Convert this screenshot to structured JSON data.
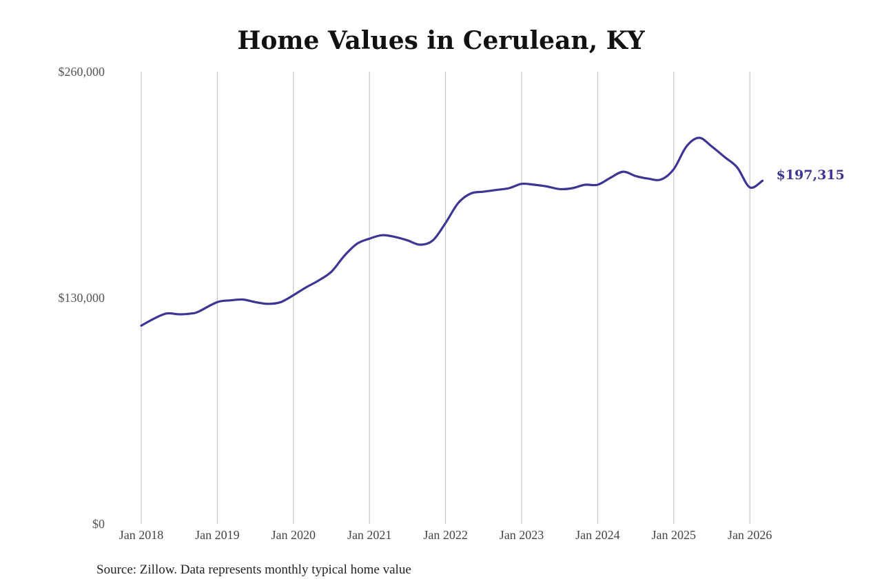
{
  "chart_data": {
    "type": "line",
    "title": "Home Values in Cerulean, KY",
    "source": "Source: Zillow. Data represents monthly typical home value",
    "ylim": [
      0,
      260000
    ],
    "yticks": [
      {
        "value": 0,
        "label": "$0"
      },
      {
        "value": 130000,
        "label": "$130,000"
      },
      {
        "value": 260000,
        "label": "$260,000"
      }
    ],
    "xlim": [
      "2018-01",
      "2026-03"
    ],
    "xticks": [
      {
        "date": "2018-01",
        "label": "Jan 2018"
      },
      {
        "date": "2019-01",
        "label": "Jan 2019"
      },
      {
        "date": "2020-01",
        "label": "Jan 2020"
      },
      {
        "date": "2021-01",
        "label": "Jan 2021"
      },
      {
        "date": "2022-01",
        "label": "Jan 2022"
      },
      {
        "date": "2023-01",
        "label": "Jan 2023"
      },
      {
        "date": "2024-01",
        "label": "Jan 2024"
      },
      {
        "date": "2025-01",
        "label": "Jan 2025"
      },
      {
        "date": "2026-01",
        "label": "Jan 2026"
      }
    ],
    "grid": {
      "vertical": true,
      "horizontal": false
    },
    "line_color": "#3b3593",
    "end_label": "$197,315",
    "series": [
      {
        "x": [
          "2018-01",
          "2018-03",
          "2018-05",
          "2018-07",
          "2018-09",
          "2018-10",
          "2019-01",
          "2019-03",
          "2019-05",
          "2019-07",
          "2019-09",
          "2019-11",
          "2020-01",
          "2020-03",
          "2020-05",
          "2020-07",
          "2020-09",
          "2020-11",
          "2021-01",
          "2021-03",
          "2021-05",
          "2021-07",
          "2021-09",
          "2021-11",
          "2022-01",
          "2022-03",
          "2022-05",
          "2022-07",
          "2022-09",
          "2022-11",
          "2023-01",
          "2023-03",
          "2023-05",
          "2023-07",
          "2023-09",
          "2023-11",
          "2024-01",
          "2024-03",
          "2024-05",
          "2024-07",
          "2024-09",
          "2024-11",
          "2025-01",
          "2025-03",
          "2025-05",
          "2025-07",
          "2025-09",
          "2025-11",
          "2026-01",
          "2026-03"
        ],
        "values": [
          114000,
          118000,
          121000,
          120500,
          121000,
          122000,
          127500,
          128500,
          129000,
          127500,
          126500,
          127500,
          131500,
          136000,
          140000,
          145000,
          154000,
          161000,
          164000,
          166000,
          165000,
          163000,
          160500,
          163000,
          173000,
          184500,
          190000,
          191000,
          192000,
          193000,
          195500,
          195000,
          194000,
          192500,
          193000,
          195000,
          195000,
          199000,
          202500,
          200000,
          198500,
          198000,
          204000,
          217000,
          222000,
          217000,
          211000,
          205000,
          193500,
          197315
        ]
      }
    ]
  }
}
